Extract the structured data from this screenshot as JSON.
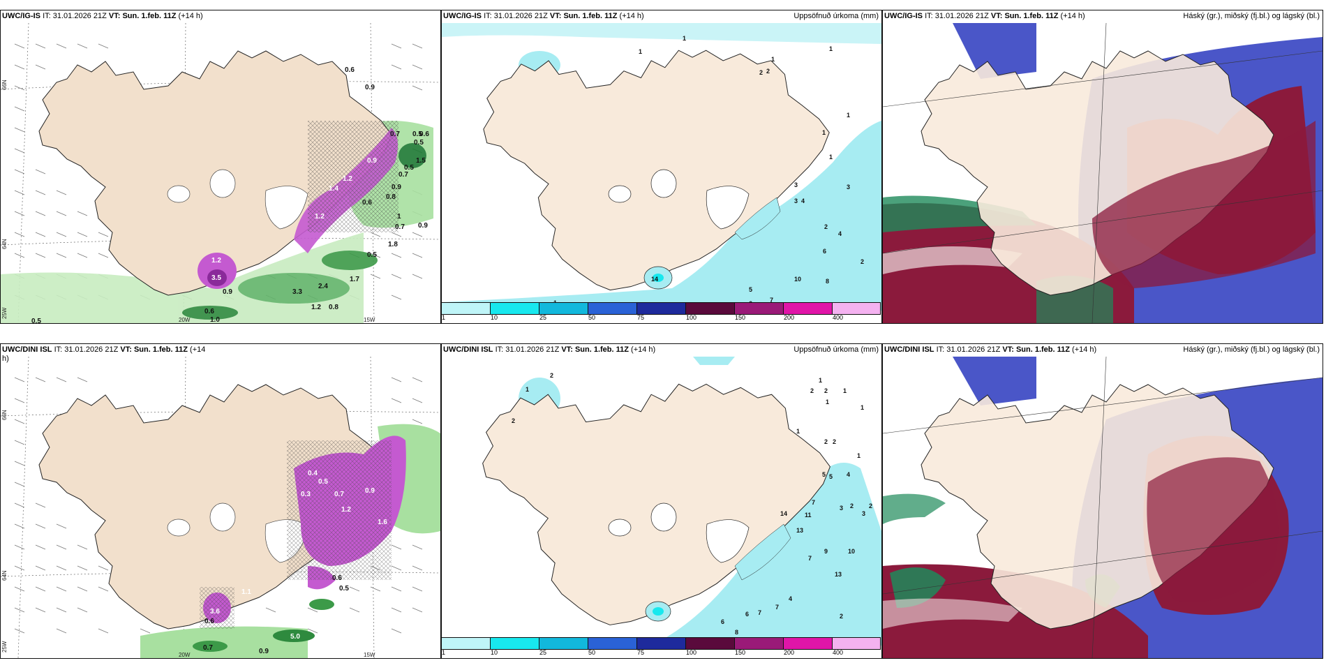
{
  "panels": [
    {
      "id": "p1",
      "title_model": "UWC/IG-IS",
      "title_it_label": "IT:",
      "title_it": "31.01.2026 21Z",
      "title_vt_label": "VT:",
      "title_vt": "Sun. 1.feb. 11Z",
      "title_lead": "(+14 h)",
      "right_title": ""
    },
    {
      "id": "p2",
      "title_model": "UWC/IG-IS",
      "title_it_label": "IT:",
      "title_it": "31.01.2026 21Z",
      "title_vt_label": "VT:",
      "title_vt": "Sun. 1.feb. 11Z",
      "title_lead": "(+14 h)",
      "right_title": "Uppsöfnuð úrkoma (mm)"
    },
    {
      "id": "p3",
      "title_model": "UWC/IG-IS",
      "title_it_label": "IT:",
      "title_it": "31.01.2026 21Z",
      "title_vt_label": "VT:",
      "title_vt": "Sun. 1.feb. 11Z",
      "title_lead": "(+14 h)",
      "right_title": "Háský (gr.), miðský (fj.bl.) og lágský (bl.)"
    },
    {
      "id": "p4",
      "title_model": "UWC/DINI ISL",
      "title_it_label": "IT:",
      "title_it": "31.01.2026 21Z",
      "title_vt_label": "VT:",
      "title_vt": "Sun. 1.feb. 11Z",
      "title_lead": "(+14 h)",
      "right_title": ""
    },
    {
      "id": "p5",
      "title_model": "UWC/DINI ISL",
      "title_it_label": "IT:",
      "title_it": "31.01.2026 21Z",
      "title_vt_label": "VT:",
      "title_vt": "Sun. 1.feb. 11Z",
      "title_lead": "(+14 h)",
      "right_title": "Uppsöfnuð úrkoma (mm)"
    },
    {
      "id": "p6",
      "title_model": "UWC/DINI ISL",
      "title_it_label": "IT:",
      "title_it": "31.01.2026 21Z",
      "title_vt_label": "VT:",
      "title_vt": "Sun. 1.feb. 11Z",
      "title_lead": "(+14 h)",
      "right_title": "Háský (gr.), miðský (fj.bl.) og lágský (bl.)"
    }
  ],
  "lat_lon_labels": {
    "lat66": "66N",
    "lat64": "64N",
    "lon25": "25W",
    "lon20": "20W",
    "lon15": "15W"
  },
  "colorbar": {
    "ticks": [
      "1",
      "10",
      "25",
      "50",
      "75",
      "100",
      "150",
      "200",
      "400"
    ],
    "colors": [
      "#bff5f8",
      "#18e8ee",
      "#12b8dc",
      "#2a62d6",
      "#1e2a9c",
      "#5a0a3c",
      "#9a1a78",
      "#e015a8",
      "#f4b2f0"
    ]
  },
  "colors": {
    "land": "#f8eadb",
    "sea": "#ffffff",
    "snow_purple": "#c45ad0",
    "green_light": "#a8e0a0",
    "green_dark": "#1e7a34",
    "precip_cyan": "#a7ecf2",
    "cloud_high": "#8b1a3c",
    "cloud_mid": "#4a56c8",
    "cloud_low": "#1e8a5a"
  },
  "p1_values": [
    "0.6",
    "0.9",
    "0.7",
    "0.5",
    "0.6",
    "1.5",
    "0.5",
    "0.5",
    "0.7",
    "0.9",
    "0.8",
    "0.9",
    "1.2",
    "1",
    "0.7",
    "0.9",
    "1.8",
    "1.2",
    "3.5",
    "0.9",
    "0.6",
    "1.0",
    "0.5",
    "0.5",
    "2.4",
    "1.7",
    "1.2",
    "0.8",
    "3.3",
    "0.6",
    "1.4",
    "1.2"
  ],
  "p2_values": [
    "1",
    "1",
    "1",
    "2",
    "2",
    "1",
    "1",
    "1",
    "1",
    "3",
    "3",
    "4",
    "3",
    "2",
    "4",
    "6",
    "2",
    "10",
    "8",
    "5",
    "6",
    "7",
    "1",
    "14"
  ],
  "p4_values": [
    "0.4",
    "0.5",
    "0.3",
    "0.7",
    "1.2",
    "0.9",
    "0.6",
    "0.5",
    "3.6",
    "1.1",
    "0.7",
    "0.9",
    "5.0",
    "1.6",
    "0.6"
  ],
  "p5_values": [
    "2",
    "1",
    "2",
    "1",
    "2",
    "2",
    "1",
    "1",
    "1",
    "1",
    "2",
    "2",
    "1",
    "5",
    "4",
    "5",
    "7",
    "3",
    "2",
    "3",
    "2",
    "11",
    "13",
    "14",
    "9",
    "10",
    "7",
    "13",
    "4",
    "7",
    "7",
    "6",
    "6",
    "2",
    "8"
  ]
}
